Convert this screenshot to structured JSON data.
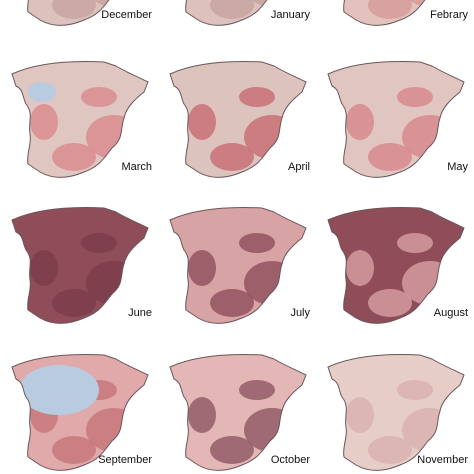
{
  "panels": [
    {
      "label": "December"
    },
    {
      "label": "January"
    },
    {
      "label": "Febrary"
    },
    {
      "label": "March"
    },
    {
      "label": "April"
    },
    {
      "label": "May"
    },
    {
      "label": "June"
    },
    {
      "label": "July"
    },
    {
      "label": "August"
    },
    {
      "label": "September"
    },
    {
      "label": "October"
    },
    {
      "label": "November"
    }
  ]
}
